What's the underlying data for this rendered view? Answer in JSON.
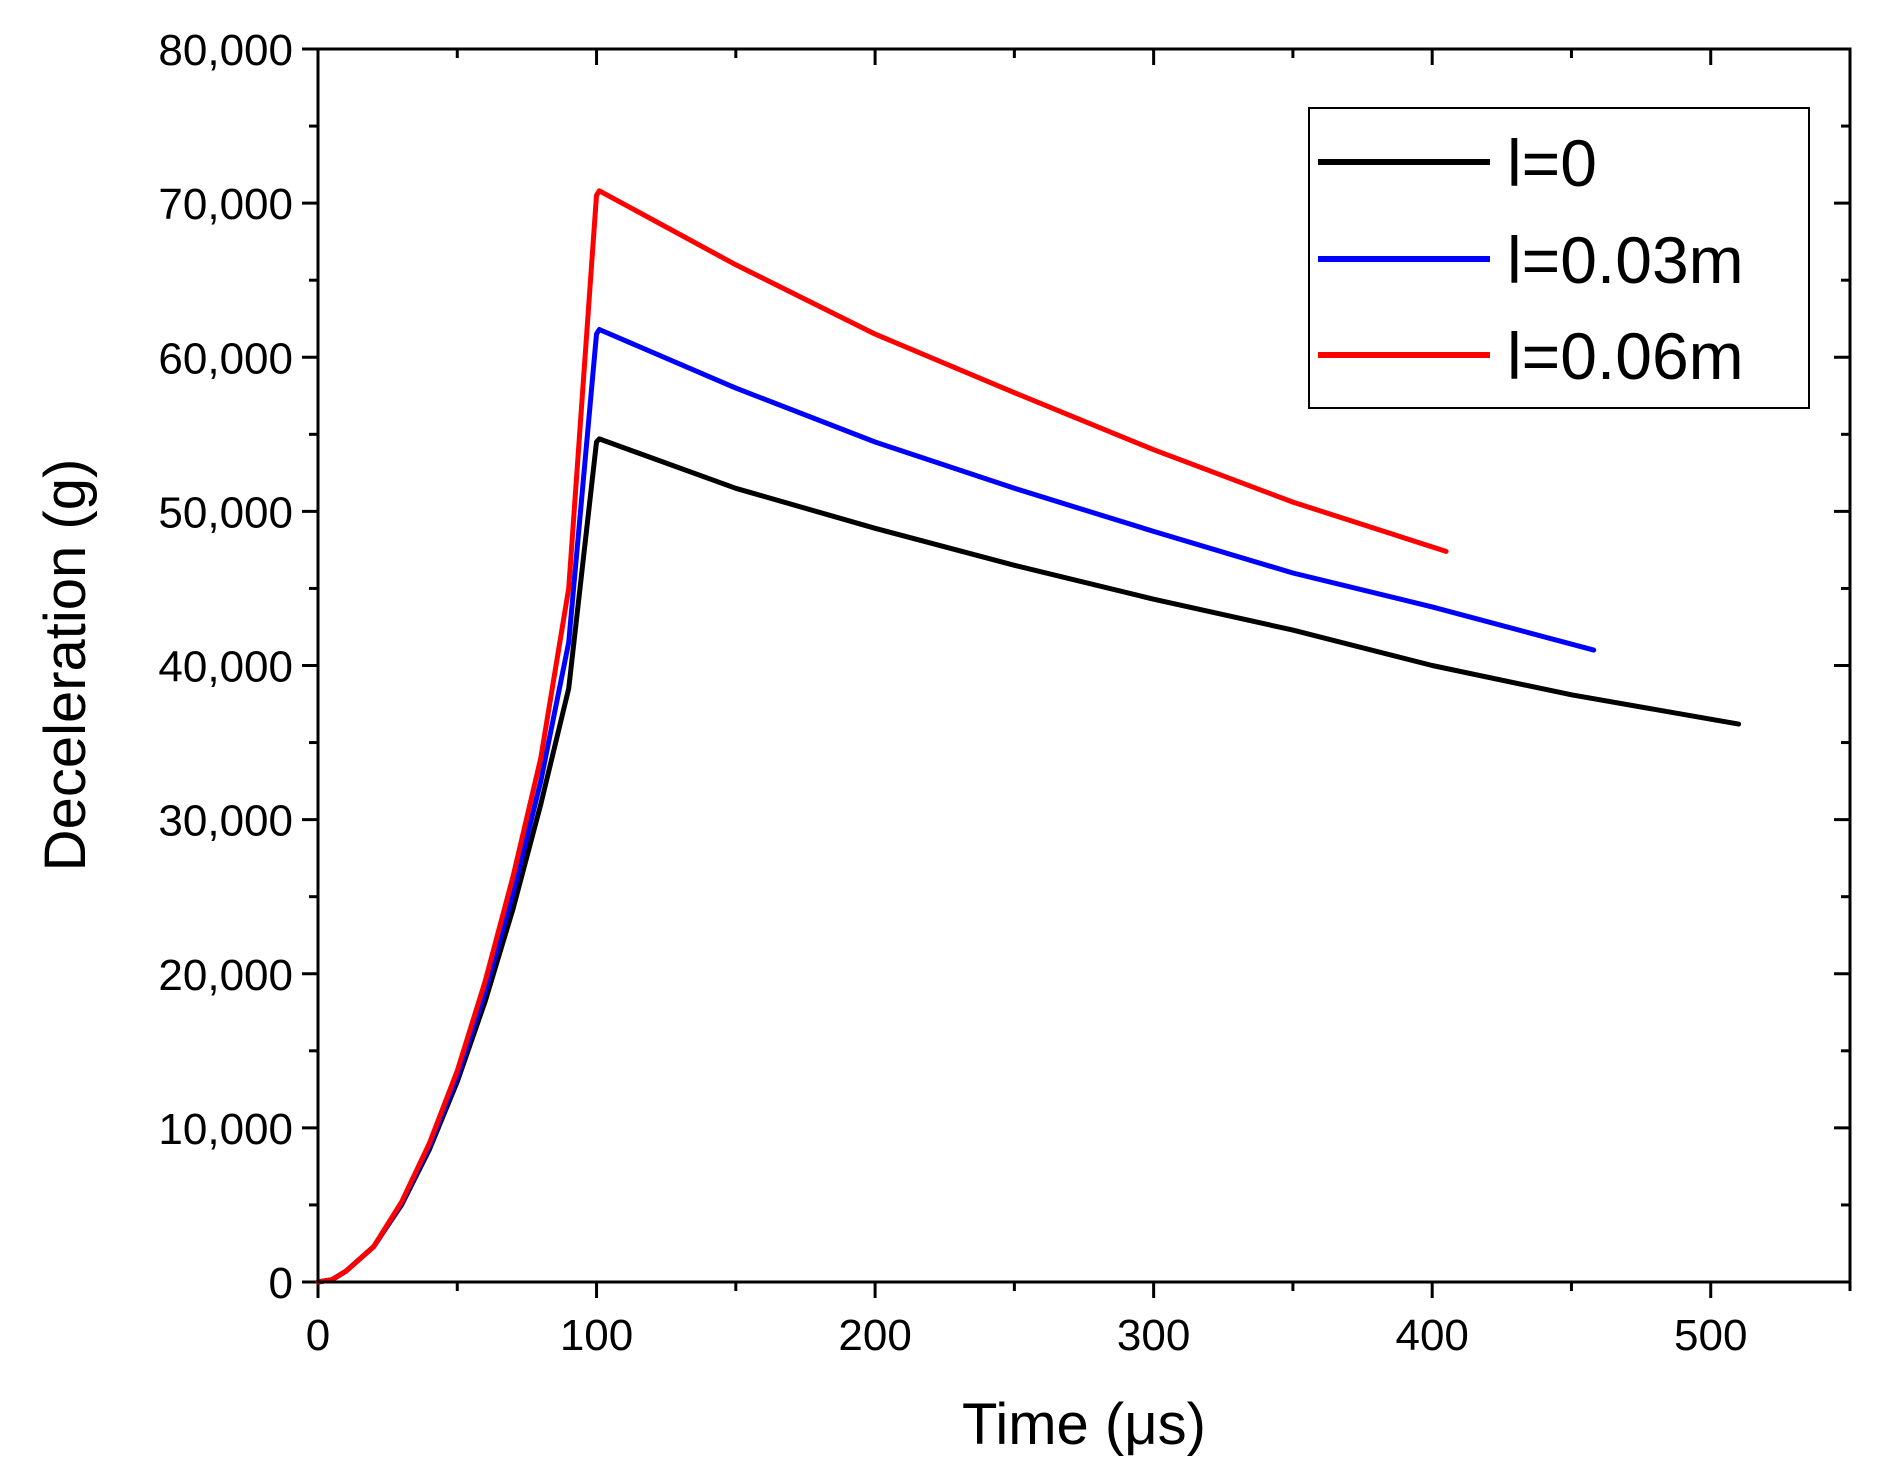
{
  "chart_data": {
    "type": "line",
    "title": "",
    "xlabel": "Time (μs)",
    "ylabel": "Deceleration (g)",
    "xlim": [
      0,
      550
    ],
    "ylim": [
      0,
      80000
    ],
    "xticks": [
      0,
      100,
      200,
      300,
      400,
      500
    ],
    "xtick_labels": [
      "0",
      "100",
      "200",
      "300",
      "400",
      "500"
    ],
    "x_minor_step": 50,
    "yticks": [
      0,
      10000,
      20000,
      30000,
      40000,
      50000,
      60000,
      70000,
      80000
    ],
    "ytick_labels": [
      "0",
      "10,000",
      "20,000",
      "30,000",
      "40,000",
      "50,000",
      "60,000",
      "70,000",
      "80,000"
    ],
    "y_minor_step": 5000,
    "grid": false,
    "legend_position": "top-right",
    "series": [
      {
        "name": "l=0",
        "color": "#000000",
        "points": [
          [
            0,
            0
          ],
          [
            5,
            150
          ],
          [
            10,
            700
          ],
          [
            20,
            2300
          ],
          [
            30,
            5000
          ],
          [
            40,
            8600
          ],
          [
            50,
            13000
          ],
          [
            60,
            18200
          ],
          [
            70,
            24200
          ],
          [
            80,
            31000
          ],
          [
            90,
            38500
          ],
          [
            100,
            54500
          ],
          [
            101,
            54700
          ],
          [
            150,
            51500
          ],
          [
            200,
            48900
          ],
          [
            250,
            46500
          ],
          [
            300,
            44300
          ],
          [
            350,
            42300
          ],
          [
            400,
            40000
          ],
          [
            450,
            38100
          ],
          [
            510,
            36200
          ]
        ]
      },
      {
        "name": "l=0.03m",
        "color": "#0000ff",
        "points": [
          [
            0,
            0
          ],
          [
            5,
            150
          ],
          [
            10,
            700
          ],
          [
            20,
            2300
          ],
          [
            30,
            5100
          ],
          [
            40,
            8800
          ],
          [
            50,
            13300
          ],
          [
            60,
            18800
          ],
          [
            70,
            25200
          ],
          [
            80,
            32500
          ],
          [
            90,
            41500
          ],
          [
            100,
            61500
          ],
          [
            101,
            61800
          ],
          [
            150,
            58000
          ],
          [
            200,
            54500
          ],
          [
            250,
            51500
          ],
          [
            300,
            48700
          ],
          [
            350,
            46000
          ],
          [
            400,
            43800
          ],
          [
            458,
            41000
          ]
        ]
      },
      {
        "name": "l=0.06m",
        "color": "#ff0000",
        "points": [
          [
            0,
            0
          ],
          [
            5,
            150
          ],
          [
            10,
            700
          ],
          [
            20,
            2300
          ],
          [
            30,
            5200
          ],
          [
            40,
            9000
          ],
          [
            50,
            13700
          ],
          [
            60,
            19500
          ],
          [
            70,
            26300
          ],
          [
            80,
            34000
          ],
          [
            90,
            45000
          ],
          [
            100,
            70500
          ],
          [
            101,
            70800
          ],
          [
            150,
            66000
          ],
          [
            200,
            61500
          ],
          [
            250,
            57700
          ],
          [
            300,
            54000
          ],
          [
            350,
            50600
          ],
          [
            405,
            47400
          ]
        ]
      }
    ]
  }
}
